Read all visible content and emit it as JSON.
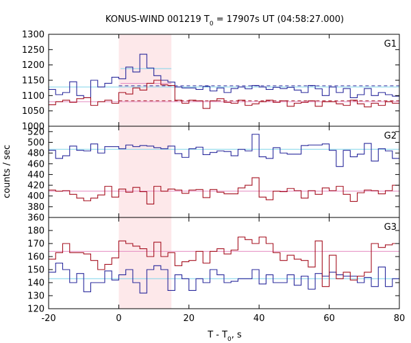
{
  "chart_data": {
    "type": "line",
    "title": {
      "main": "KONUS-WIND 001219 T",
      "sub": "0",
      "rest": " = 17907s UT (04:58:27.000)"
    },
    "xlabel": {
      "main": "T - T",
      "sub": "0",
      "rest": ", s"
    },
    "ylabel": "counts / sec",
    "xlim": [
      -20,
      80
    ],
    "x_ticks": [
      -20,
      0,
      20,
      40,
      60,
      80
    ],
    "shaded_interval": {
      "x": [
        0,
        15
      ],
      "color": "#fde8ea"
    },
    "colors": {
      "blue": "#27279b",
      "red": "#a50f1e",
      "cyan": "#7fd4ea",
      "pink": "#e48ac0",
      "redDashed": "#a50f1e",
      "blueDashed": "#27279b"
    },
    "panels": [
      {
        "label": "G1",
        "ylim": [
          1000,
          1300
        ],
        "y_ticks": [
          1000,
          1050,
          1100,
          1150,
          1200,
          1250,
          1300
        ],
        "step_edges": [
          -20,
          -18,
          -16,
          -14,
          -12,
          -10,
          -8,
          -6,
          -4,
          -2,
          0,
          2,
          4,
          6,
          8,
          10,
          12,
          14,
          16,
          18,
          20,
          22,
          24,
          26,
          28,
          30,
          32,
          34,
          36,
          38,
          40,
          42,
          44,
          46,
          48,
          50,
          52,
          54,
          56,
          58,
          60,
          62,
          64,
          66,
          68,
          70,
          72,
          74,
          76,
          78,
          80
        ],
        "series": [
          {
            "color": "blue",
            "values": [
              1120,
              1103,
              1110,
              1145,
              1100,
              1093,
              1150,
              1128,
              1140,
              1160,
              1155,
              1193,
              1177,
              1235,
              1190,
              1165,
              1150,
              1144,
              1128,
              1125,
              1125,
              1120,
              1130,
              1115,
              1125,
              1110,
              1123,
              1128,
              1122,
              1133,
              1128,
              1120,
              1127,
              1123,
              1127,
              1118,
              1110,
              1133,
              1122,
              1100,
              1128,
              1110,
              1123,
              1093,
              1103,
              1123,
              1100,
              1110,
              1103,
              1098
            ]
          },
          {
            "color": "red",
            "values": [
              1070,
              1080,
              1085,
              1078,
              1090,
              1093,
              1068,
              1080,
              1085,
              1075,
              1110,
              1105,
              1125,
              1118,
              1140,
              1150,
              1135,
              1133,
              1085,
              1075,
              1085,
              1083,
              1058,
              1083,
              1090,
              1078,
              1075,
              1085,
              1068,
              1073,
              1080,
              1085,
              1078,
              1083,
              1065,
              1075,
              1078,
              1083,
              1065,
              1080,
              1080,
              1073,
              1068,
              1085,
              1073,
              1063,
              1075,
              1068,
              1080,
              1075
            ]
          }
        ],
        "levels": [
          {
            "color": "cyan",
            "style": "solid",
            "y": 1128,
            "x": [
              -20,
              80
            ]
          },
          {
            "color": "pink",
            "style": "solid",
            "y": 1080,
            "x": [
              -20,
              80
            ]
          },
          {
            "color": "cyan",
            "style": "solid",
            "y": 1188,
            "x": [
              0.5,
              15
            ]
          },
          {
            "color": "pink",
            "style": "solid",
            "y": 1140,
            "x": [
              0.5,
              15
            ]
          },
          {
            "color": "blueDashed",
            "style": "dashed",
            "y": 1132,
            "x": [
              0,
              80
            ]
          },
          {
            "color": "redDashed",
            "style": "dashed",
            "y": 1083,
            "x": [
              0,
              80
            ]
          }
        ]
      },
      {
        "label": "G2",
        "ylim": [
          360,
          530
        ],
        "y_ticks": [
          360,
          380,
          400,
          420,
          440,
          460,
          480,
          500,
          520
        ],
        "step_edges": [
          -20,
          -18,
          -16,
          -14,
          -12,
          -10,
          -8,
          -6,
          -4,
          -2,
          0,
          2,
          4,
          6,
          8,
          10,
          12,
          14,
          16,
          18,
          20,
          22,
          24,
          26,
          28,
          30,
          32,
          34,
          36,
          38,
          40,
          42,
          44,
          46,
          48,
          50,
          52,
          54,
          56,
          58,
          60,
          62,
          64,
          66,
          68,
          70,
          72,
          74,
          76,
          78,
          80
        ],
        "series": [
          {
            "color": "blue",
            "values": [
              485,
              470,
              475,
              493,
              485,
              484,
              497,
              480,
              492,
              492,
              488,
              495,
              492,
              494,
              493,
              490,
              488,
              493,
              479,
              472,
              488,
              491,
              477,
              481,
              484,
              483,
              475,
              487,
              484,
              515,
              473,
              470,
              490,
              480,
              478,
              478,
              494,
              495,
              495,
              497,
              485,
              455,
              485,
              473,
              478,
              498,
              465,
              488,
              484,
              470
            ]
          },
          {
            "color": "red",
            "values": [
              411,
              409,
              410,
              403,
              396,
              391,
              396,
              402,
              418,
              398,
              413,
              407,
              416,
              408,
              385,
              418,
              409,
              413,
              411,
              405,
              411,
              412,
              397,
              412,
              407,
              404,
              404,
              415,
              420,
              434,
              398,
              393,
              409,
              408,
              414,
              410,
              396,
              410,
              403,
              415,
              410,
              418,
              403,
              390,
              406,
              411,
              410,
              404,
              410,
              420
            ]
          }
        ],
        "levels": [
          {
            "color": "cyan",
            "style": "solid",
            "y": 487,
            "x": [
              -20,
              80
            ]
          },
          {
            "color": "pink",
            "style": "solid",
            "y": 409,
            "x": [
              -20,
              80
            ]
          }
        ]
      },
      {
        "label": "G3",
        "ylim": [
          120,
          190
        ],
        "y_ticks": [
          120,
          130,
          140,
          150,
          160,
          170,
          180
        ],
        "step_edges": [
          -20,
          -18,
          -16,
          -14,
          -12,
          -10,
          -8,
          -6,
          -4,
          -2,
          0,
          2,
          4,
          6,
          8,
          10,
          12,
          14,
          16,
          18,
          20,
          22,
          24,
          26,
          28,
          30,
          32,
          34,
          36,
          38,
          40,
          42,
          44,
          46,
          48,
          50,
          52,
          54,
          56,
          58,
          60,
          62,
          64,
          66,
          68,
          70,
          72,
          74,
          76,
          78,
          80
        ],
        "series": [
          {
            "color": "blue",
            "values": [
              148,
              155,
              150,
              140,
              147,
              133,
              140,
              140,
              149,
              142,
              146,
              150,
              140,
              132,
              150,
              153,
              150,
              134,
              146,
              143,
              134,
              143,
              140,
              150,
              146,
              140,
              141,
              143,
              143,
              150,
              139,
              146,
              140,
              140,
              146,
              138,
              145,
              135,
              147,
              145,
              148,
              146,
              145,
              145,
              140,
              144,
              137,
              152,
              137,
              143
            ]
          },
          {
            "color": "red",
            "values": [
              158,
              163,
              170,
              163,
              163,
              162,
              157,
              150,
              154,
              159,
              172,
              170,
              168,
              166,
              160,
              171,
              160,
              163,
              153,
              156,
              157,
              164,
              155,
              164,
              166,
              162,
              165,
              175,
              173,
              170,
              175,
              170,
              163,
              157,
              161,
              158,
              157,
              152,
              172,
              137,
              161,
              143,
              148,
              142,
              145,
              148,
              170,
              167,
              169,
              170
            ]
          }
        ],
        "levels": [
          {
            "color": "cyan",
            "style": "solid",
            "y": 143,
            "x": [
              -20,
              80
            ]
          },
          {
            "color": "pink",
            "style": "solid",
            "y": 164,
            "x": [
              -20,
              80
            ]
          }
        ]
      }
    ]
  }
}
